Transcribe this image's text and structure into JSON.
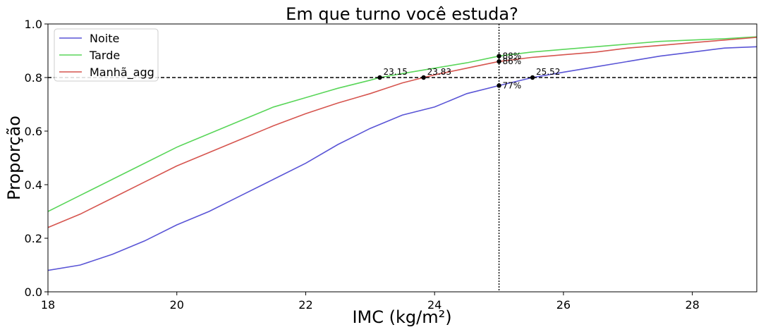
{
  "chart_data": {
    "type": "line",
    "title": "Em que turno você estuda?",
    "xlabel": "IMC (kg/m²)",
    "ylabel": "Proporção",
    "xlim": [
      18,
      29
    ],
    "ylim": [
      0.0,
      1.0
    ],
    "xticks": [
      18,
      20,
      22,
      24,
      26,
      28
    ],
    "yticks": [
      0.0,
      0.2,
      0.4,
      0.6,
      0.8,
      1.0
    ],
    "ytick_labels": [
      "0.0",
      "0.2",
      "0.4",
      "0.6",
      "0.8",
      "1.0"
    ],
    "grid": false,
    "legend_position": "top-left",
    "series": [
      {
        "name": "Noite",
        "color": "#5a55d6",
        "points": [
          [
            18.0,
            0.08
          ],
          [
            18.5,
            0.1
          ],
          [
            19.0,
            0.14
          ],
          [
            19.5,
            0.19
          ],
          [
            20.0,
            0.25
          ],
          [
            20.5,
            0.3
          ],
          [
            21.0,
            0.36
          ],
          [
            21.5,
            0.42
          ],
          [
            22.0,
            0.48
          ],
          [
            22.5,
            0.55
          ],
          [
            23.0,
            0.61
          ],
          [
            23.5,
            0.66
          ],
          [
            24.0,
            0.69
          ],
          [
            24.5,
            0.74
          ],
          [
            25.0,
            0.77
          ],
          [
            25.52,
            0.8
          ],
          [
            26.0,
            0.82
          ],
          [
            26.5,
            0.84
          ],
          [
            27.0,
            0.86
          ],
          [
            27.5,
            0.88
          ],
          [
            28.0,
            0.895
          ],
          [
            28.5,
            0.91
          ],
          [
            29.0,
            0.915
          ]
        ]
      },
      {
        "name": "Tarde",
        "color": "#5ad65a",
        "points": [
          [
            18.0,
            0.3
          ],
          [
            18.5,
            0.36
          ],
          [
            19.0,
            0.42
          ],
          [
            19.5,
            0.48
          ],
          [
            20.0,
            0.54
          ],
          [
            20.5,
            0.59
          ],
          [
            21.0,
            0.64
          ],
          [
            21.5,
            0.69
          ],
          [
            22.0,
            0.725
          ],
          [
            22.5,
            0.76
          ],
          [
            23.0,
            0.79
          ],
          [
            23.15,
            0.8
          ],
          [
            23.5,
            0.815
          ],
          [
            24.0,
            0.835
          ],
          [
            24.5,
            0.855
          ],
          [
            25.0,
            0.88
          ],
          [
            25.5,
            0.895
          ],
          [
            26.0,
            0.905
          ],
          [
            26.5,
            0.915
          ],
          [
            27.0,
            0.925
          ],
          [
            27.5,
            0.935
          ],
          [
            28.0,
            0.94
          ],
          [
            28.5,
            0.945
          ],
          [
            29.0,
            0.952
          ]
        ]
      },
      {
        "name": "Manhã_agg",
        "color": "#d6554f",
        "points": [
          [
            18.0,
            0.24
          ],
          [
            18.5,
            0.29
          ],
          [
            19.0,
            0.35
          ],
          [
            19.5,
            0.41
          ],
          [
            20.0,
            0.47
          ],
          [
            20.5,
            0.52
          ],
          [
            21.0,
            0.57
          ],
          [
            21.5,
            0.62
          ],
          [
            22.0,
            0.665
          ],
          [
            22.5,
            0.705
          ],
          [
            23.0,
            0.74
          ],
          [
            23.5,
            0.78
          ],
          [
            23.83,
            0.8
          ],
          [
            24.0,
            0.81
          ],
          [
            24.5,
            0.835
          ],
          [
            25.0,
            0.86
          ],
          [
            25.5,
            0.875
          ],
          [
            26.0,
            0.885
          ],
          [
            26.5,
            0.895
          ],
          [
            27.0,
            0.91
          ],
          [
            27.5,
            0.92
          ],
          [
            28.0,
            0.93
          ],
          [
            28.5,
            0.94
          ],
          [
            29.0,
            0.95
          ]
        ]
      }
    ],
    "hline": {
      "y": 0.8,
      "style": "dashed"
    },
    "vline": {
      "x": 25,
      "style": "dotted"
    },
    "markers": [
      {
        "x": 23.15,
        "y": 0.8,
        "label": "23.15"
      },
      {
        "x": 23.83,
        "y": 0.8,
        "label": "23.83"
      },
      {
        "x": 25.52,
        "y": 0.8,
        "label": "25.52"
      },
      {
        "x": 25.0,
        "y": 0.88,
        "label": "88%"
      },
      {
        "x": 25.0,
        "y": 0.86,
        "label": "86%"
      },
      {
        "x": 25.0,
        "y": 0.77,
        "label": "77%"
      }
    ]
  }
}
